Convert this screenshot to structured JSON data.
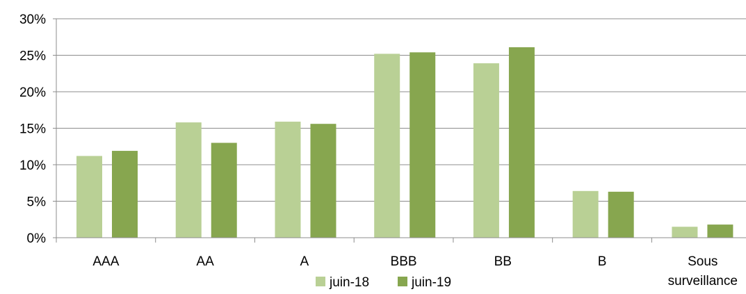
{
  "chart_data": {
    "type": "bar",
    "title": "",
    "xlabel": "",
    "ylabel": "",
    "ylim": [
      0,
      30
    ],
    "y_ticks": [
      "0%",
      "5%",
      "10%",
      "15%",
      "20%",
      "25%",
      "30%"
    ],
    "y_unit": "%",
    "grid": true,
    "legend_position": "bottom",
    "categories": [
      "AAA",
      "AA",
      "A",
      "BBB",
      "BB",
      "B",
      "Sous surveillance"
    ],
    "series": [
      {
        "name": "juin-18",
        "color": "#b9d095",
        "values": [
          11.2,
          15.8,
          15.9,
          25.2,
          23.9,
          6.4,
          1.5
        ]
      },
      {
        "name": "juin-19",
        "color": "#87a64f",
        "values": [
          11.9,
          13.0,
          15.6,
          25.4,
          26.1,
          6.3,
          1.8
        ]
      }
    ]
  }
}
